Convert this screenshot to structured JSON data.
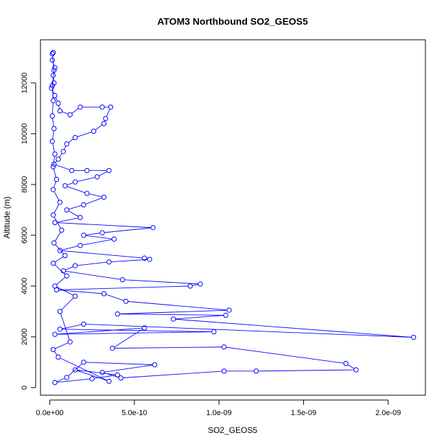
{
  "chart_data": {
    "type": "line",
    "title": "ATOM3 Northbound SO2_GEOS5",
    "xlabel": "SO2_GEOS5",
    "ylabel": "Altitude (m)",
    "xlim": [
      -5.5e-11,
      2.22e-09
    ],
    "ylim": [
      -300,
      13700
    ],
    "x_ticks": [
      0,
      5e-10,
      1e-09,
      1.5e-09,
      2e-09
    ],
    "x_tick_labels": [
      "0.0e+00",
      "5.0e-10",
      "1.0e-09",
      "1.5e-09",
      "2.0e-09"
    ],
    "y_ticks": [
      0,
      2000,
      4000,
      6000,
      8000,
      10000,
      12000
    ],
    "y_tick_labels": [
      "0",
      "2000",
      "4000",
      "6000",
      "8000",
      "10000",
      "12000"
    ],
    "grid": false,
    "marker": "open-circle",
    "series_color": "#0000ff",
    "points": [
      [
        2e-11,
        13200
      ],
      [
        1.5e-11,
        12900
      ],
      [
        3e-11,
        12600
      ],
      [
        2e-11,
        12300
      ],
      [
        2.5e-11,
        12000
      ],
      [
        1e-11,
        11800
      ],
      [
        3e-11,
        11500
      ],
      [
        5e-11,
        11200
      ],
      [
        6e-11,
        10900
      ],
      [
        1.2e-10,
        10750
      ],
      [
        1.8e-10,
        11050
      ],
      [
        3.1e-10,
        11050
      ],
      [
        3.6e-10,
        11050
      ],
      [
        3.3e-10,
        10600
      ],
      [
        3.2e-10,
        10400
      ],
      [
        2.6e-10,
        10100
      ],
      [
        1.5e-10,
        9850
      ],
      [
        1e-10,
        9600
      ],
      [
        8e-11,
        9300
      ],
      [
        5e-11,
        9000
      ],
      [
        2.5e-11,
        8800
      ],
      [
        1.3e-10,
        8550
      ],
      [
        2.2e-10,
        8550
      ],
      [
        3.5e-10,
        8550
      ],
      [
        2.8e-10,
        8300
      ],
      [
        1.5e-10,
        8100
      ],
      [
        9e-11,
        7950
      ],
      [
        2.2e-10,
        7650
      ],
      [
        3.2e-10,
        7500
      ],
      [
        2e-10,
        7200
      ],
      [
        1e-10,
        7000
      ],
      [
        1.8e-10,
        6700
      ],
      [
        3e-11,
        6500
      ],
      [
        6.1e-10,
        6300
      ],
      [
        3.1e-10,
        6100
      ],
      [
        2e-10,
        6000
      ],
      [
        3.8e-10,
        5850
      ],
      [
        1.8e-10,
        5600
      ],
      [
        6e-11,
        5400
      ],
      [
        5.6e-10,
        5100
      ],
      [
        5.9e-10,
        5050
      ],
      [
        3.5e-10,
        4950
      ],
      [
        1.5e-10,
        4800
      ],
      [
        8e-11,
        4600
      ],
      [
        4.3e-10,
        4250
      ],
      [
        8.9e-10,
        4080
      ],
      [
        8.3e-10,
        4000
      ],
      [
        4e-11,
        3850
      ],
      [
        3.2e-10,
        3700
      ],
      [
        4.5e-10,
        3400
      ],
      [
        1.06e-09,
        3050
      ],
      [
        4e-10,
        2900
      ],
      [
        1.04e-09,
        2850
      ],
      [
        7.3e-10,
        2700
      ],
      [
        2.15e-09,
        1980
      ],
      [
        2e-10,
        2500
      ],
      [
        6e-11,
        2300
      ],
      [
        9.7e-10,
        2200
      ],
      [
        3e-11,
        2100
      ],
      [
        5.6e-10,
        2350
      ],
      [
        3.7e-10,
        1550
      ],
      [
        1.03e-09,
        1600
      ],
      [
        1.75e-09,
        950
      ],
      [
        1.81e-09,
        700
      ],
      [
        1.22e-09,
        650
      ],
      [
        1.03e-09,
        650
      ],
      [
        4.2e-10,
        380
      ],
      [
        3.1e-10,
        600
      ],
      [
        6.2e-10,
        900
      ],
      [
        2e-10,
        1000
      ],
      [
        1e-10,
        400
      ],
      [
        3e-11,
        200
      ],
      [
        2.5e-10,
        350
      ],
      [
        4e-10,
        500
      ],
      [
        1.5e-10,
        700
      ],
      [
        3.5e-10,
        250
      ],
      [
        5e-11,
        1200
      ],
      [
        2e-11,
        1500
      ],
      [
        1.2e-10,
        1800
      ],
      [
        6e-11,
        3000
      ],
      [
        1.5e-10,
        3600
      ],
      [
        3e-11,
        4000
      ],
      [
        1e-10,
        4400
      ],
      [
        2e-11,
        4900
      ],
      [
        9e-11,
        5200
      ],
      [
        2.5e-11,
        5700
      ],
      [
        7e-11,
        6200
      ],
      [
        2e-11,
        6800
      ],
      [
        6e-11,
        7300
      ],
      [
        2e-11,
        7800
      ],
      [
        4e-11,
        8200
      ],
      [
        2e-11,
        8700
      ],
      [
        3e-11,
        9200
      ],
      [
        1.5e-11,
        9700
      ],
      [
        2.5e-11,
        10200
      ],
      [
        1.5e-11,
        10700
      ],
      [
        2e-11,
        11300
      ],
      [
        1.5e-11,
        11900
      ],
      [
        2.5e-11,
        12500
      ],
      [
        1.5e-11,
        13150
      ]
    ]
  }
}
